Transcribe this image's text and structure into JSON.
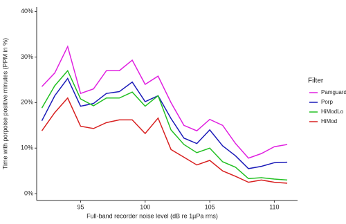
{
  "chart_data": {
    "type": "line",
    "x_label": "Full-band recorder noise level (dB re 1µPa rms)",
    "y_label": "Time with porpoise positive minutes (PPM in %)",
    "legend_title": "Filter",
    "legend": "right",
    "x": [
      92,
      93,
      94,
      95,
      96,
      97,
      98,
      99,
      100,
      101,
      102,
      103,
      104,
      105,
      106,
      107,
      108,
      109,
      110,
      111
    ],
    "series": [
      {
        "name": "Pamguard",
        "color": "#e020e0",
        "values": [
          23.5,
          26.5,
          32.3,
          22,
          23,
          27,
          27,
          29.3,
          24,
          25.8,
          20,
          15,
          13.8,
          16.3,
          15,
          11,
          7.8,
          8.8,
          10.3,
          10.8
        ]
      },
      {
        "name": "Porp",
        "color": "#1a1ab8",
        "values": [
          16,
          21.5,
          25.3,
          19.2,
          19.8,
          22,
          22.4,
          24.5,
          20.2,
          21.5,
          16.5,
          12.2,
          11,
          14,
          10.5,
          8.3,
          5.5,
          6,
          6.8,
          6.9
        ]
      },
      {
        "name": "HiModLo",
        "color": "#22c022",
        "values": [
          18.8,
          23.7,
          27,
          20.8,
          19.3,
          21,
          21,
          22.3,
          19.2,
          21.5,
          14,
          10.8,
          9,
          10,
          7,
          5.8,
          3.3,
          3.5,
          3.2,
          3
        ]
      },
      {
        "name": "HiMod",
        "color": "#d82020",
        "values": [
          13.8,
          17.8,
          21,
          14.8,
          14.3,
          15.6,
          16.2,
          16.2,
          13.2,
          16.6,
          9.7,
          8,
          6.3,
          7.3,
          5,
          3.8,
          2.5,
          3,
          2.5,
          2.3
        ]
      }
    ],
    "xlim": [
      91.6,
      111.8
    ],
    "xticks": [
      95,
      100,
      105,
      110
    ],
    "ylim": [
      -1.5,
      41
    ],
    "yticks": [
      {
        "value": 0,
        "label": "0%"
      },
      {
        "value": 10,
        "label": "10%"
      },
      {
        "value": 20,
        "label": "20%"
      },
      {
        "value": 30,
        "label": "30%"
      },
      {
        "value": 40,
        "label": "40%"
      }
    ]
  }
}
